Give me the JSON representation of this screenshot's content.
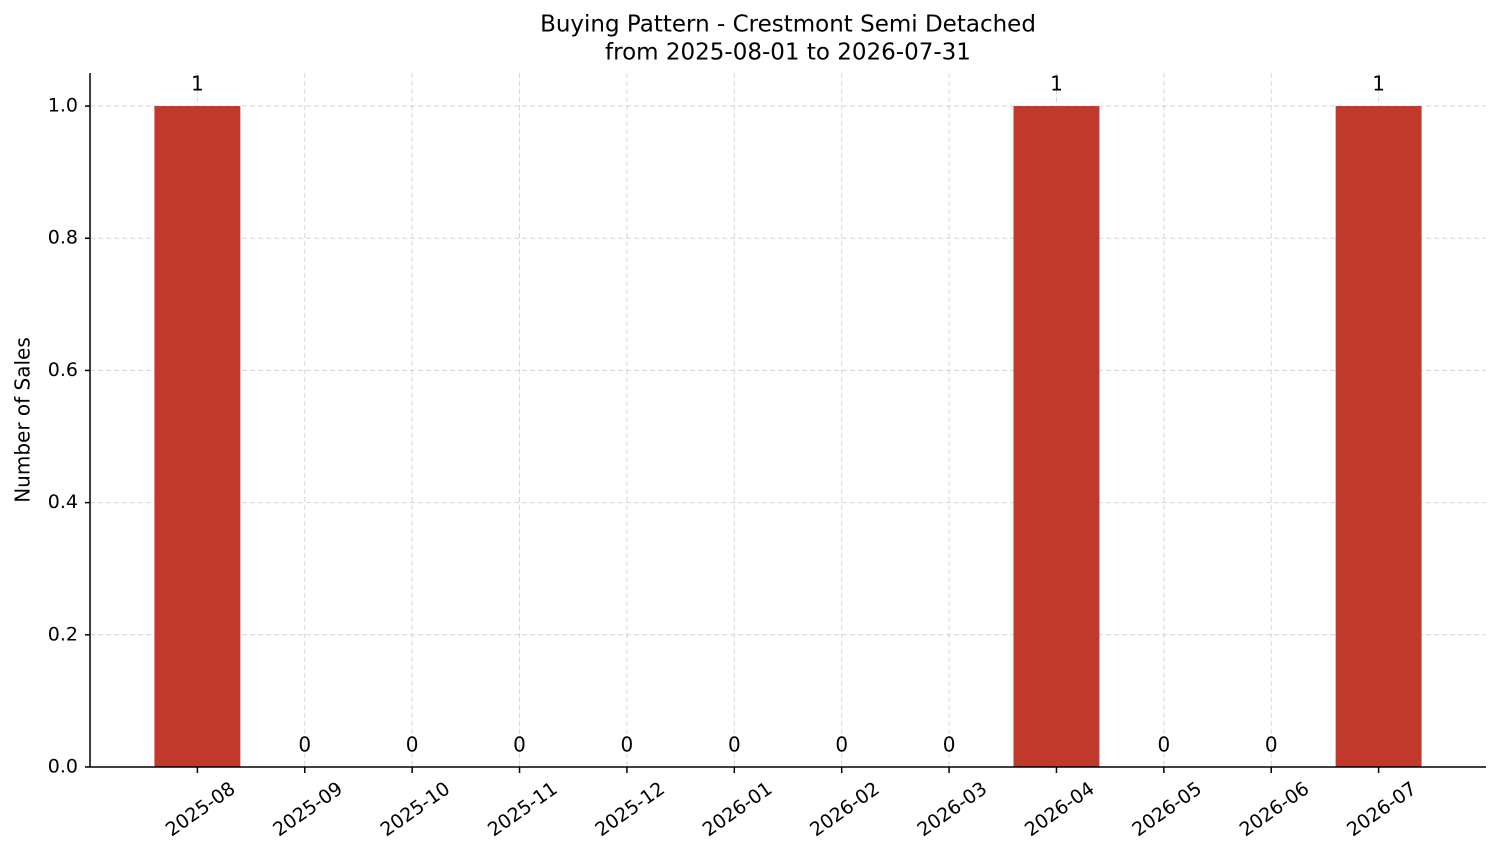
{
  "chart_data": {
    "type": "bar",
    "title": "Buying Pattern - Crestmont Semi Detached",
    "subtitle": "from 2025-08-01 to 2026-07-31",
    "y_label": "Number of Sales",
    "categories": [
      "2025-08",
      "2025-09",
      "2025-10",
      "2025-11",
      "2025-12",
      "2026-01",
      "2026-02",
      "2026-03",
      "2026-04",
      "2026-05",
      "2026-06",
      "2026-07"
    ],
    "values": [
      1,
      0,
      0,
      0,
      0,
      0,
      0,
      0,
      1,
      0,
      0,
      1
    ],
    "color": "#c0392b",
    "ylim": [
      0,
      1.05
    ],
    "yticks": [
      {
        "value": 0,
        "label": "0.0"
      },
      0.2,
      0.4,
      0.6,
      0.8,
      {
        "value": 1,
        "label": "1.0"
      }
    ],
    "grid": true
  }
}
